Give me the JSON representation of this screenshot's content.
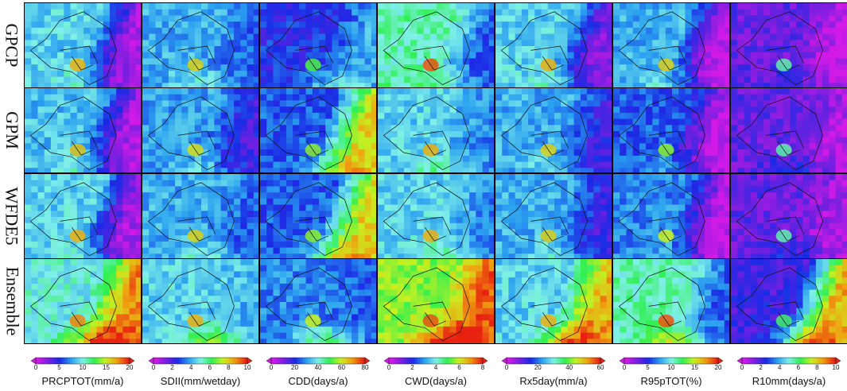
{
  "chart_data": {
    "type": "heatmap",
    "rows": [
      "GPCP",
      "GPM",
      "WFDE5",
      "Ensemble"
    ],
    "columns": [
      {
        "title": "PRCPTOT(mm/a)",
        "ticks": [
          "0",
          "5",
          "10",
          "15",
          "20"
        ],
        "range": [
          0,
          20
        ]
      },
      {
        "title": "SDII(mm/wetday)",
        "ticks": [
          "0",
          "2",
          "4",
          "6",
          "8",
          "10"
        ],
        "range": [
          0,
          10
        ]
      },
      {
        "title": "CDD(days/a)",
        "ticks": [
          "0",
          "20",
          "40",
          "60",
          "80"
        ],
        "range": [
          0,
          80
        ]
      },
      {
        "title": "CWD(days/a)",
        "ticks": [
          "0",
          "2",
          "4",
          "6",
          "8"
        ],
        "range": [
          0,
          8
        ]
      },
      {
        "title": "Rx5day(mm/a)",
        "ticks": [
          "0",
          "20",
          "40",
          "60"
        ],
        "range": [
          0,
          60
        ]
      },
      {
        "title": "R95pTOT(%)",
        "ticks": [
          "0",
          "5",
          "10",
          "15",
          "20"
        ],
        "range": [
          0,
          20
        ]
      },
      {
        "title": "R10mm(days/a)",
        "ticks": [
          "0",
          "2",
          "4",
          "6",
          "8",
          "10"
        ],
        "range": [
          0,
          10
        ]
      }
    ],
    "colormap": [
      "#d21ae6",
      "#7a1fe0",
      "#1a2ae6",
      "#2aa0f0",
      "#7ff0e8",
      "#2ef050",
      "#c8f020",
      "#f0a010",
      "#e82010"
    ]
  }
}
